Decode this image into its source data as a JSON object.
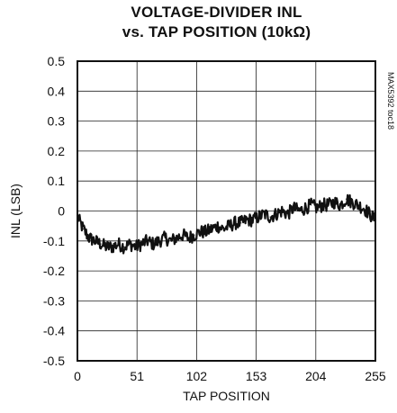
{
  "chart_data": {
    "type": "line",
    "title_line1": "VOLTAGE-DIVIDER INL",
    "title_line2": "vs. TAP POSITION (10kΩ)",
    "xlabel": "TAP POSITION",
    "ylabel": "INL (LSB)",
    "xlim": [
      0,
      255
    ],
    "ylim": [
      -0.5,
      0.5
    ],
    "x_ticks": [
      "0",
      "51",
      "102",
      "153",
      "204",
      "255"
    ],
    "y_ticks": [
      "0.5",
      "0.4",
      "0.3",
      "0.2",
      "0.1",
      "0",
      "-0.1",
      "-0.2",
      "-0.3",
      "-0.4",
      "-0.5"
    ],
    "grid": true,
    "side_note": "MAX5392 toc18",
    "series": [
      {
        "color": "#111111",
        "x": [
          0,
          5,
          10,
          15,
          20,
          25,
          30,
          35,
          40,
          45,
          50,
          55,
          60,
          65,
          70,
          75,
          80,
          85,
          90,
          95,
          100,
          105,
          110,
          115,
          120,
          125,
          130,
          135,
          140,
          145,
          150,
          155,
          160,
          165,
          170,
          175,
          180,
          185,
          190,
          195,
          200,
          205,
          210,
          215,
          220,
          225,
          230,
          235,
          240,
          245,
          250,
          255
        ],
        "y": [
          -0.02,
          -0.06,
          -0.09,
          -0.1,
          -0.11,
          -0.12,
          -0.12,
          -0.11,
          -0.12,
          -0.11,
          -0.12,
          -0.11,
          -0.1,
          -0.11,
          -0.1,
          -0.09,
          -0.1,
          -0.09,
          -0.08,
          -0.09,
          -0.08,
          -0.07,
          -0.07,
          -0.06,
          -0.05,
          -0.06,
          -0.05,
          -0.04,
          -0.04,
          -0.03,
          -0.03,
          -0.02,
          -0.01,
          -0.02,
          -0.01,
          0.0,
          -0.01,
          0.01,
          0.0,
          0.01,
          0.02,
          0.01,
          0.02,
          0.02,
          0.03,
          0.02,
          0.04,
          0.03,
          0.02,
          0.01,
          -0.01,
          -0.03
        ]
      }
    ]
  }
}
